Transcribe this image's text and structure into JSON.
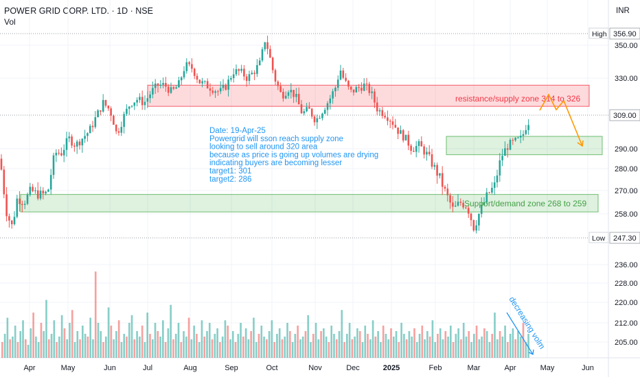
{
  "header": {
    "title": "POWER GRID CORP. LTD. · 1D · NSE",
    "indicator": "Vol",
    "currency": "INR"
  },
  "chart_data": {
    "type": "candlestick",
    "price_axis": {
      "ticks": [
        350,
        330,
        290,
        280,
        270,
        258,
        236,
        228,
        220,
        212,
        205
      ],
      "tick_labels": [
        "350.00",
        "330.00",
        "290.00",
        "280.00",
        "270.00",
        "258.00",
        "236.00",
        "228.00",
        "220.00",
        "212.00",
        "205.00"
      ],
      "high_label": "High",
      "high_value": "356.90",
      "low_label": "Low",
      "low_value": "247.30",
      "last_value": "309.00"
    },
    "time_axis": [
      "Apr",
      "May",
      "Jun",
      "Jul",
      "Aug",
      "Sep",
      "Oct",
      "Nov",
      "Dec",
      "2025",
      "Feb",
      "Mar",
      "Apr",
      "May",
      "Jun"
    ],
    "price_path": [
      [
        0,
        285
      ],
      [
        10,
        258
      ],
      [
        18,
        252
      ],
      [
        25,
        266
      ],
      [
        35,
        264
      ],
      [
        45,
        270
      ],
      [
        55,
        268
      ],
      [
        65,
        268
      ],
      [
        70,
        270
      ],
      [
        80,
        288
      ],
      [
        90,
        288
      ],
      [
        100,
        296
      ],
      [
        110,
        292
      ],
      [
        120,
        296
      ],
      [
        130,
        300
      ],
      [
        140,
        308
      ],
      [
        150,
        316
      ],
      [
        160,
        312
      ],
      [
        165,
        306
      ],
      [
        170,
        298
      ],
      [
        180,
        308
      ],
      [
        190,
        316
      ],
      [
        200,
        318
      ],
      [
        210,
        316
      ],
      [
        220,
        322
      ],
      [
        230,
        326
      ],
      [
        240,
        326
      ],
      [
        250,
        322
      ],
      [
        260,
        326
      ],
      [
        270,
        338
      ],
      [
        280,
        336
      ],
      [
        290,
        328
      ],
      [
        300,
        326
      ],
      [
        310,
        324
      ],
      [
        320,
        322
      ],
      [
        330,
        326
      ],
      [
        340,
        334
      ],
      [
        350,
        334
      ],
      [
        360,
        330
      ],
      [
        370,
        334
      ],
      [
        380,
        340
      ],
      [
        385,
        354
      ],
      [
        390,
        348
      ],
      [
        400,
        330
      ],
      [
        410,
        320
      ],
      [
        420,
        324
      ],
      [
        430,
        320
      ],
      [
        440,
        310
      ],
      [
        450,
        312
      ],
      [
        460,
        306
      ],
      [
        470,
        312
      ],
      [
        480,
        318
      ],
      [
        490,
        326
      ],
      [
        495,
        336
      ],
      [
        500,
        330
      ],
      [
        510,
        322
      ],
      [
        520,
        324
      ],
      [
        530,
        326
      ],
      [
        540,
        322
      ],
      [
        550,
        312
      ],
      [
        560,
        310
      ],
      [
        570,
        306
      ],
      [
        580,
        300
      ],
      [
        590,
        296
      ],
      [
        600,
        290
      ],
      [
        610,
        292
      ],
      [
        620,
        288
      ],
      [
        630,
        282
      ],
      [
        640,
        276
      ],
      [
        650,
        268
      ],
      [
        660,
        260
      ],
      [
        670,
        264
      ],
      [
        680,
        262
      ],
      [
        690,
        252
      ],
      [
        700,
        260
      ],
      [
        710,
        268
      ],
      [
        720,
        272
      ],
      [
        730,
        286
      ],
      [
        740,
        292
      ],
      [
        750,
        294
      ],
      [
        760,
        296
      ],
      [
        765,
        302
      ],
      [
        772,
        307
      ]
    ],
    "volume": [
      205,
      208,
      214,
      206,
      207,
      211,
      205,
      209,
      213,
      206,
      204,
      210,
      216,
      207,
      205,
      212,
      209,
      221,
      206,
      208,
      213,
      205,
      207,
      215,
      210,
      206,
      212,
      217,
      205,
      209,
      206,
      211,
      208,
      207,
      214,
      206,
      233,
      212,
      209,
      205,
      207,
      218,
      211,
      206,
      209,
      213,
      205,
      208,
      207,
      212,
      215,
      206,
      209,
      207,
      211,
      205,
      216,
      208,
      206,
      212,
      209,
      207,
      213,
      205,
      210,
      219,
      206,
      208,
      212,
      205,
      209,
      207,
      214,
      206,
      211,
      208,
      205,
      213,
      207,
      209,
      212,
      206,
      208,
      210,
      205,
      207,
      213,
      211,
      206,
      209,
      205,
      208,
      212,
      207,
      210,
      206,
      209,
      214,
      205,
      208,
      211,
      207,
      206,
      209,
      213,
      205,
      208,
      210,
      206,
      207,
      212,
      209,
      205,
      208,
      211,
      206,
      207,
      209,
      215,
      205,
      208,
      212,
      206,
      209,
      210,
      207,
      205,
      211,
      208,
      206,
      209,
      217,
      205,
      208,
      212,
      206,
      207,
      210,
      209,
      205,
      211,
      208,
      206,
      213,
      207,
      209,
      205,
      211,
      208,
      206,
      210,
      207,
      209,
      205,
      212,
      208,
      206,
      209,
      207,
      210,
      205,
      208,
      211,
      206,
      209,
      207,
      213,
      205,
      208,
      210,
      206,
      209,
      207,
      211,
      205,
      208,
      210,
      206,
      212,
      207,
      209,
      205,
      208,
      211,
      206,
      207,
      210,
      209,
      205,
      208,
      216,
      206,
      209,
      207,
      211,
      205,
      208,
      210,
      206,
      209,
      207,
      212,
      205,
      208
    ],
    "zones": [
      {
        "kind": "resistance",
        "label": "resistance/supply zone 314 to 326",
        "from": 314,
        "to": 326,
        "color": "#f23645"
      },
      {
        "kind": "target",
        "label": "",
        "from": 287,
        "to": 297,
        "color": "#4caf50"
      },
      {
        "kind": "support",
        "label": "Support/demand zone 268 to 259",
        "from": 259,
        "to": 268,
        "color": "#4caf50"
      }
    ],
    "note_lines": [
      "Date: 19-Apr-25",
      "Powergrid will sson reach supply zone",
      "looking to sell around 320 area",
      "because as price is going up volumes are drying",
      "indicating buyers are becoming lesser",
      "target1: 301",
      "target2: 286"
    ],
    "volume_note": "decreasing volm",
    "colors": {
      "up": "#26a69a",
      "down": "#ef5350",
      "note": "#2196f3",
      "arrow": "#ff9800",
      "grid": "#f0f3fa"
    }
  }
}
